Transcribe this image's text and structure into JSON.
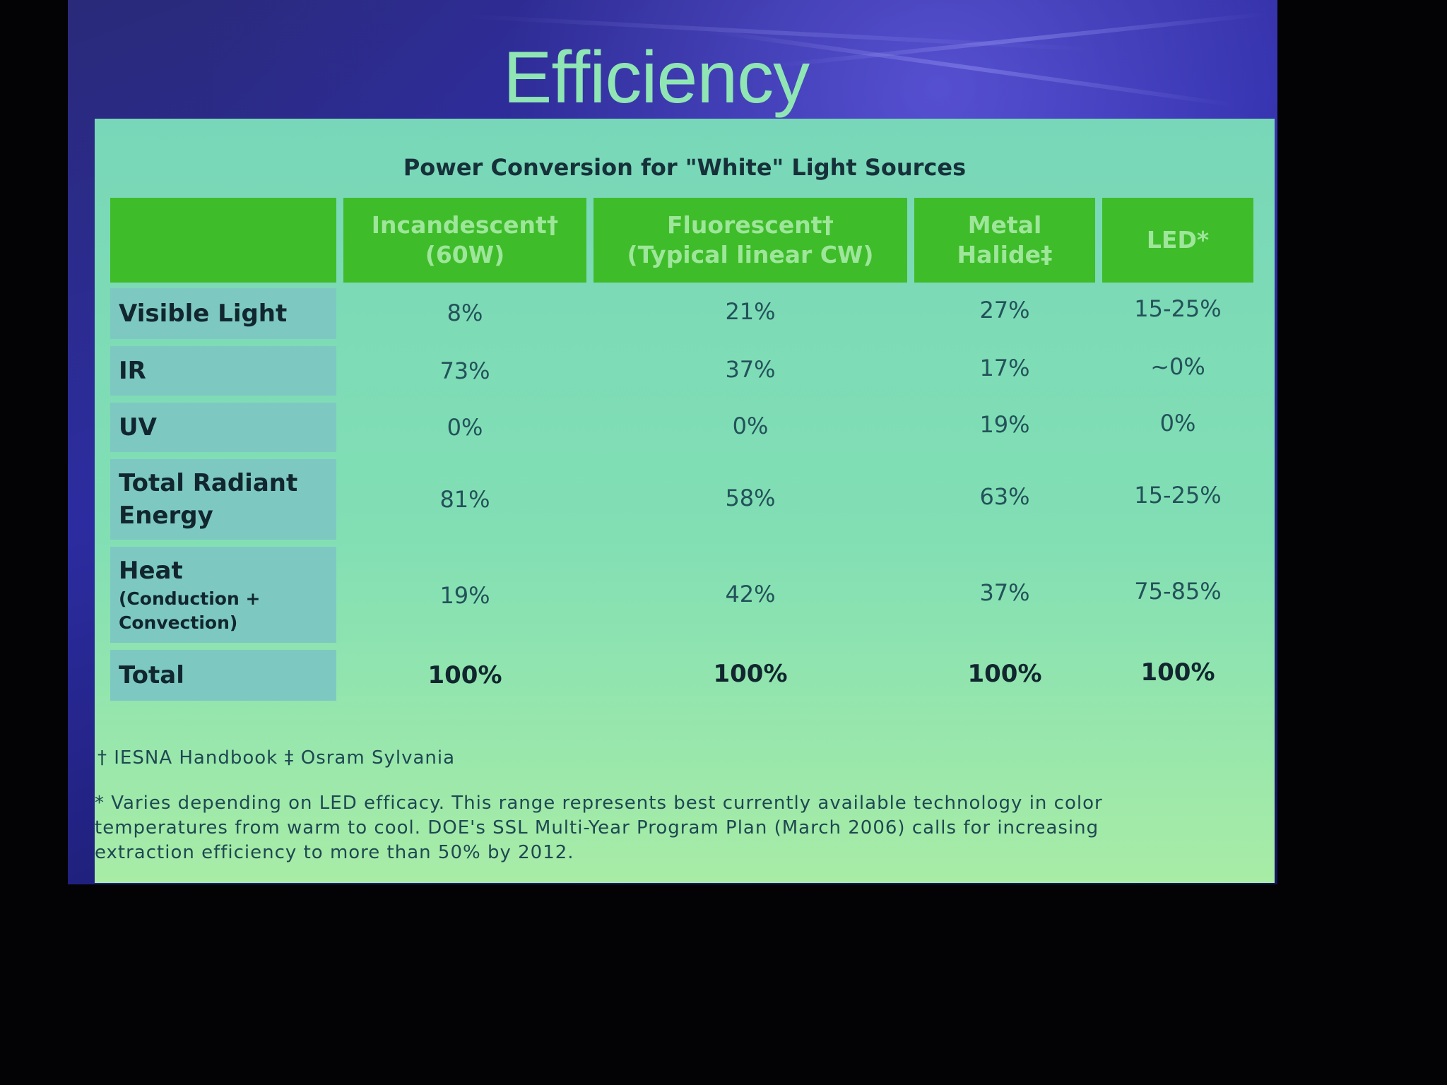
{
  "slide": {
    "title": "Efficiency",
    "table_title": "Power Conversion for \"White\" Light Sources"
  },
  "table": {
    "columns": [
      {
        "line1": "Incandescent†",
        "line2": "(60W)"
      },
      {
        "line1": "Fluorescent†",
        "line2": "(Typical linear CW)"
      },
      {
        "line1": "Metal",
        "line2": "Halide‡"
      },
      {
        "line1": "LED*",
        "line2": ""
      }
    ],
    "rows": [
      {
        "label": "Visible Light",
        "sub": "",
        "values": [
          "8%",
          "21%",
          "27%",
          "15-25%"
        ]
      },
      {
        "label": "IR",
        "sub": "",
        "values": [
          "73%",
          "37%",
          "17%",
          "~0%"
        ]
      },
      {
        "label": "UV",
        "sub": "",
        "values": [
          "0%",
          "0%",
          "19%",
          "0%"
        ]
      },
      {
        "label": "Total Radiant",
        "label2": "Energy",
        "sub": "",
        "values": [
          "81%",
          "58%",
          "63%",
          "15-25%"
        ]
      },
      {
        "label": "Heat",
        "sub": "(Conduction +",
        "sub2": "Convection)",
        "values": [
          "19%",
          "42%",
          "37%",
          "75-85%"
        ]
      },
      {
        "label": "Total",
        "sub": "",
        "values": [
          "100%",
          "100%",
          "100%",
          "100%"
        ]
      }
    ]
  },
  "footnotes": {
    "sources": "† IESNA Handbook ‡ Osram Sylvania",
    "note_line1": "* Varies depending on LED efficacy. This range represents best currently available technology in color",
    "note_line2": "temperatures from warm to cool. DOE's SSL Multi-Year Program Plan (March 2006) calls for increasing",
    "note_line3": "extraction efficiency to more than 50% by 2012."
  }
}
